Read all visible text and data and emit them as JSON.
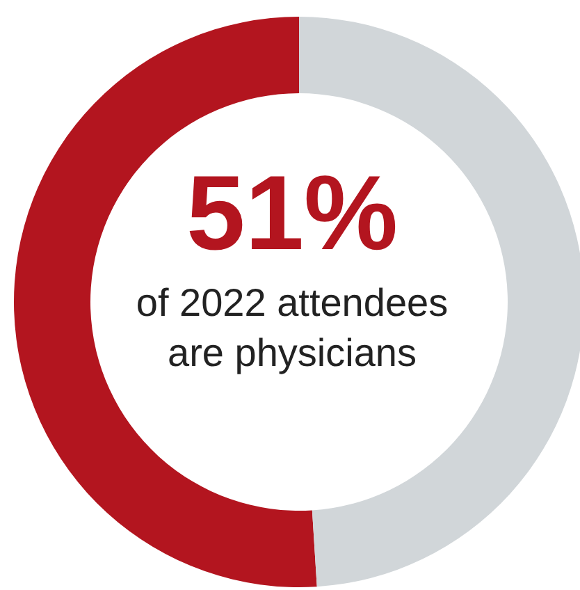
{
  "chart_data": {
    "type": "donut",
    "categories": [
      null,
      null
    ],
    "values": [
      51,
      49
    ],
    "colors": [
      "#b3151f",
      "#d1d6d9"
    ],
    "value_labels": [
      "51%",
      null
    ],
    "annotations": [
      "of 2022 attendees are physicians"
    ],
    "legend": false
  }
}
